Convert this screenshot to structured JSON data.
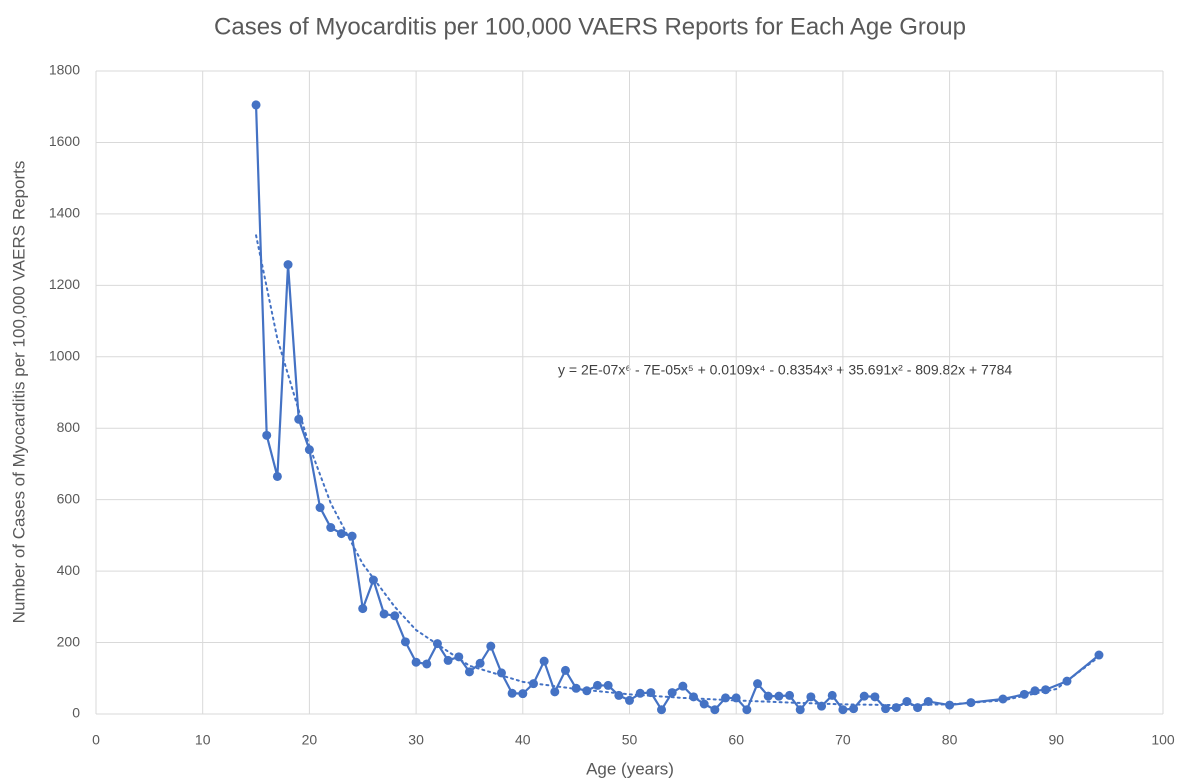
{
  "chart_data": {
    "type": "line",
    "title": "Cases of Myocarditis per 100,000 VAERS Reports for Each Age Group",
    "x_label": "Age (years)",
    "y_label": "Number of Cases of Myocarditis per 100,000 VAERS Reports",
    "annotation": "y = 2E-07x⁶ - 7E-05x⁵ + 0.0109x⁴ - 0.8354x³ + 35.691x² - 809.82x + 7784",
    "x": [
      15,
      16,
      17,
      18,
      19,
      20,
      21,
      22,
      23,
      24,
      25,
      26,
      27,
      28,
      29,
      30,
      31,
      32,
      33,
      34,
      35,
      36,
      37,
      38,
      39,
      40,
      41,
      42,
      43,
      44,
      45,
      46,
      47,
      48,
      49,
      50,
      51,
      52,
      53,
      54,
      55,
      56,
      57,
      58,
      59,
      60,
      61,
      62,
      63,
      64,
      65,
      66,
      67,
      68,
      69,
      70,
      71,
      72,
      73,
      74,
      75,
      76,
      77,
      78,
      80,
      82,
      85,
      87,
      88,
      89,
      91,
      94
    ],
    "series": [
      {
        "color": "#4472c4",
        "values": [
          1705,
          780,
          665,
          1258,
          825,
          740,
          578,
          522,
          505,
          498,
          295,
          375,
          280,
          275,
          202,
          145,
          140,
          197,
          150,
          160,
          118,
          142,
          190,
          115,
          58,
          57,
          85,
          148,
          62,
          122,
          72,
          65,
          80,
          80,
          52,
          38,
          58,
          60,
          12,
          60,
          78,
          48,
          28,
          12,
          45,
          45,
          12,
          85,
          50,
          50,
          52,
          12,
          48,
          22,
          52,
          12,
          15,
          50,
          48,
          15,
          18,
          35,
          18,
          35,
          25,
          32,
          42,
          55,
          65,
          68,
          92,
          165
        ]
      }
    ],
    "trendline": {
      "color": "#4472c4",
      "x": [
        15,
        17,
        20,
        22,
        25,
        28,
        30,
        35,
        40,
        45,
        50,
        55,
        60,
        65,
        70,
        75,
        80,
        85,
        90,
        94
      ],
      "values": [
        1340,
        1050,
        750,
        590,
        420,
        300,
        235,
        135,
        90,
        70,
        55,
        45,
        38,
        32,
        27,
        25,
        27,
        38,
        70,
        160
      ]
    },
    "xlim": [
      0,
      100
    ],
    "xticks": [
      0,
      10,
      20,
      30,
      40,
      50,
      60,
      70,
      80,
      90,
      100
    ],
    "ylim": [
      0,
      1800
    ],
    "yticks": [
      0,
      200,
      400,
      600,
      800,
      1000,
      1200,
      1400,
      1600,
      1800
    ],
    "grid": true
  }
}
